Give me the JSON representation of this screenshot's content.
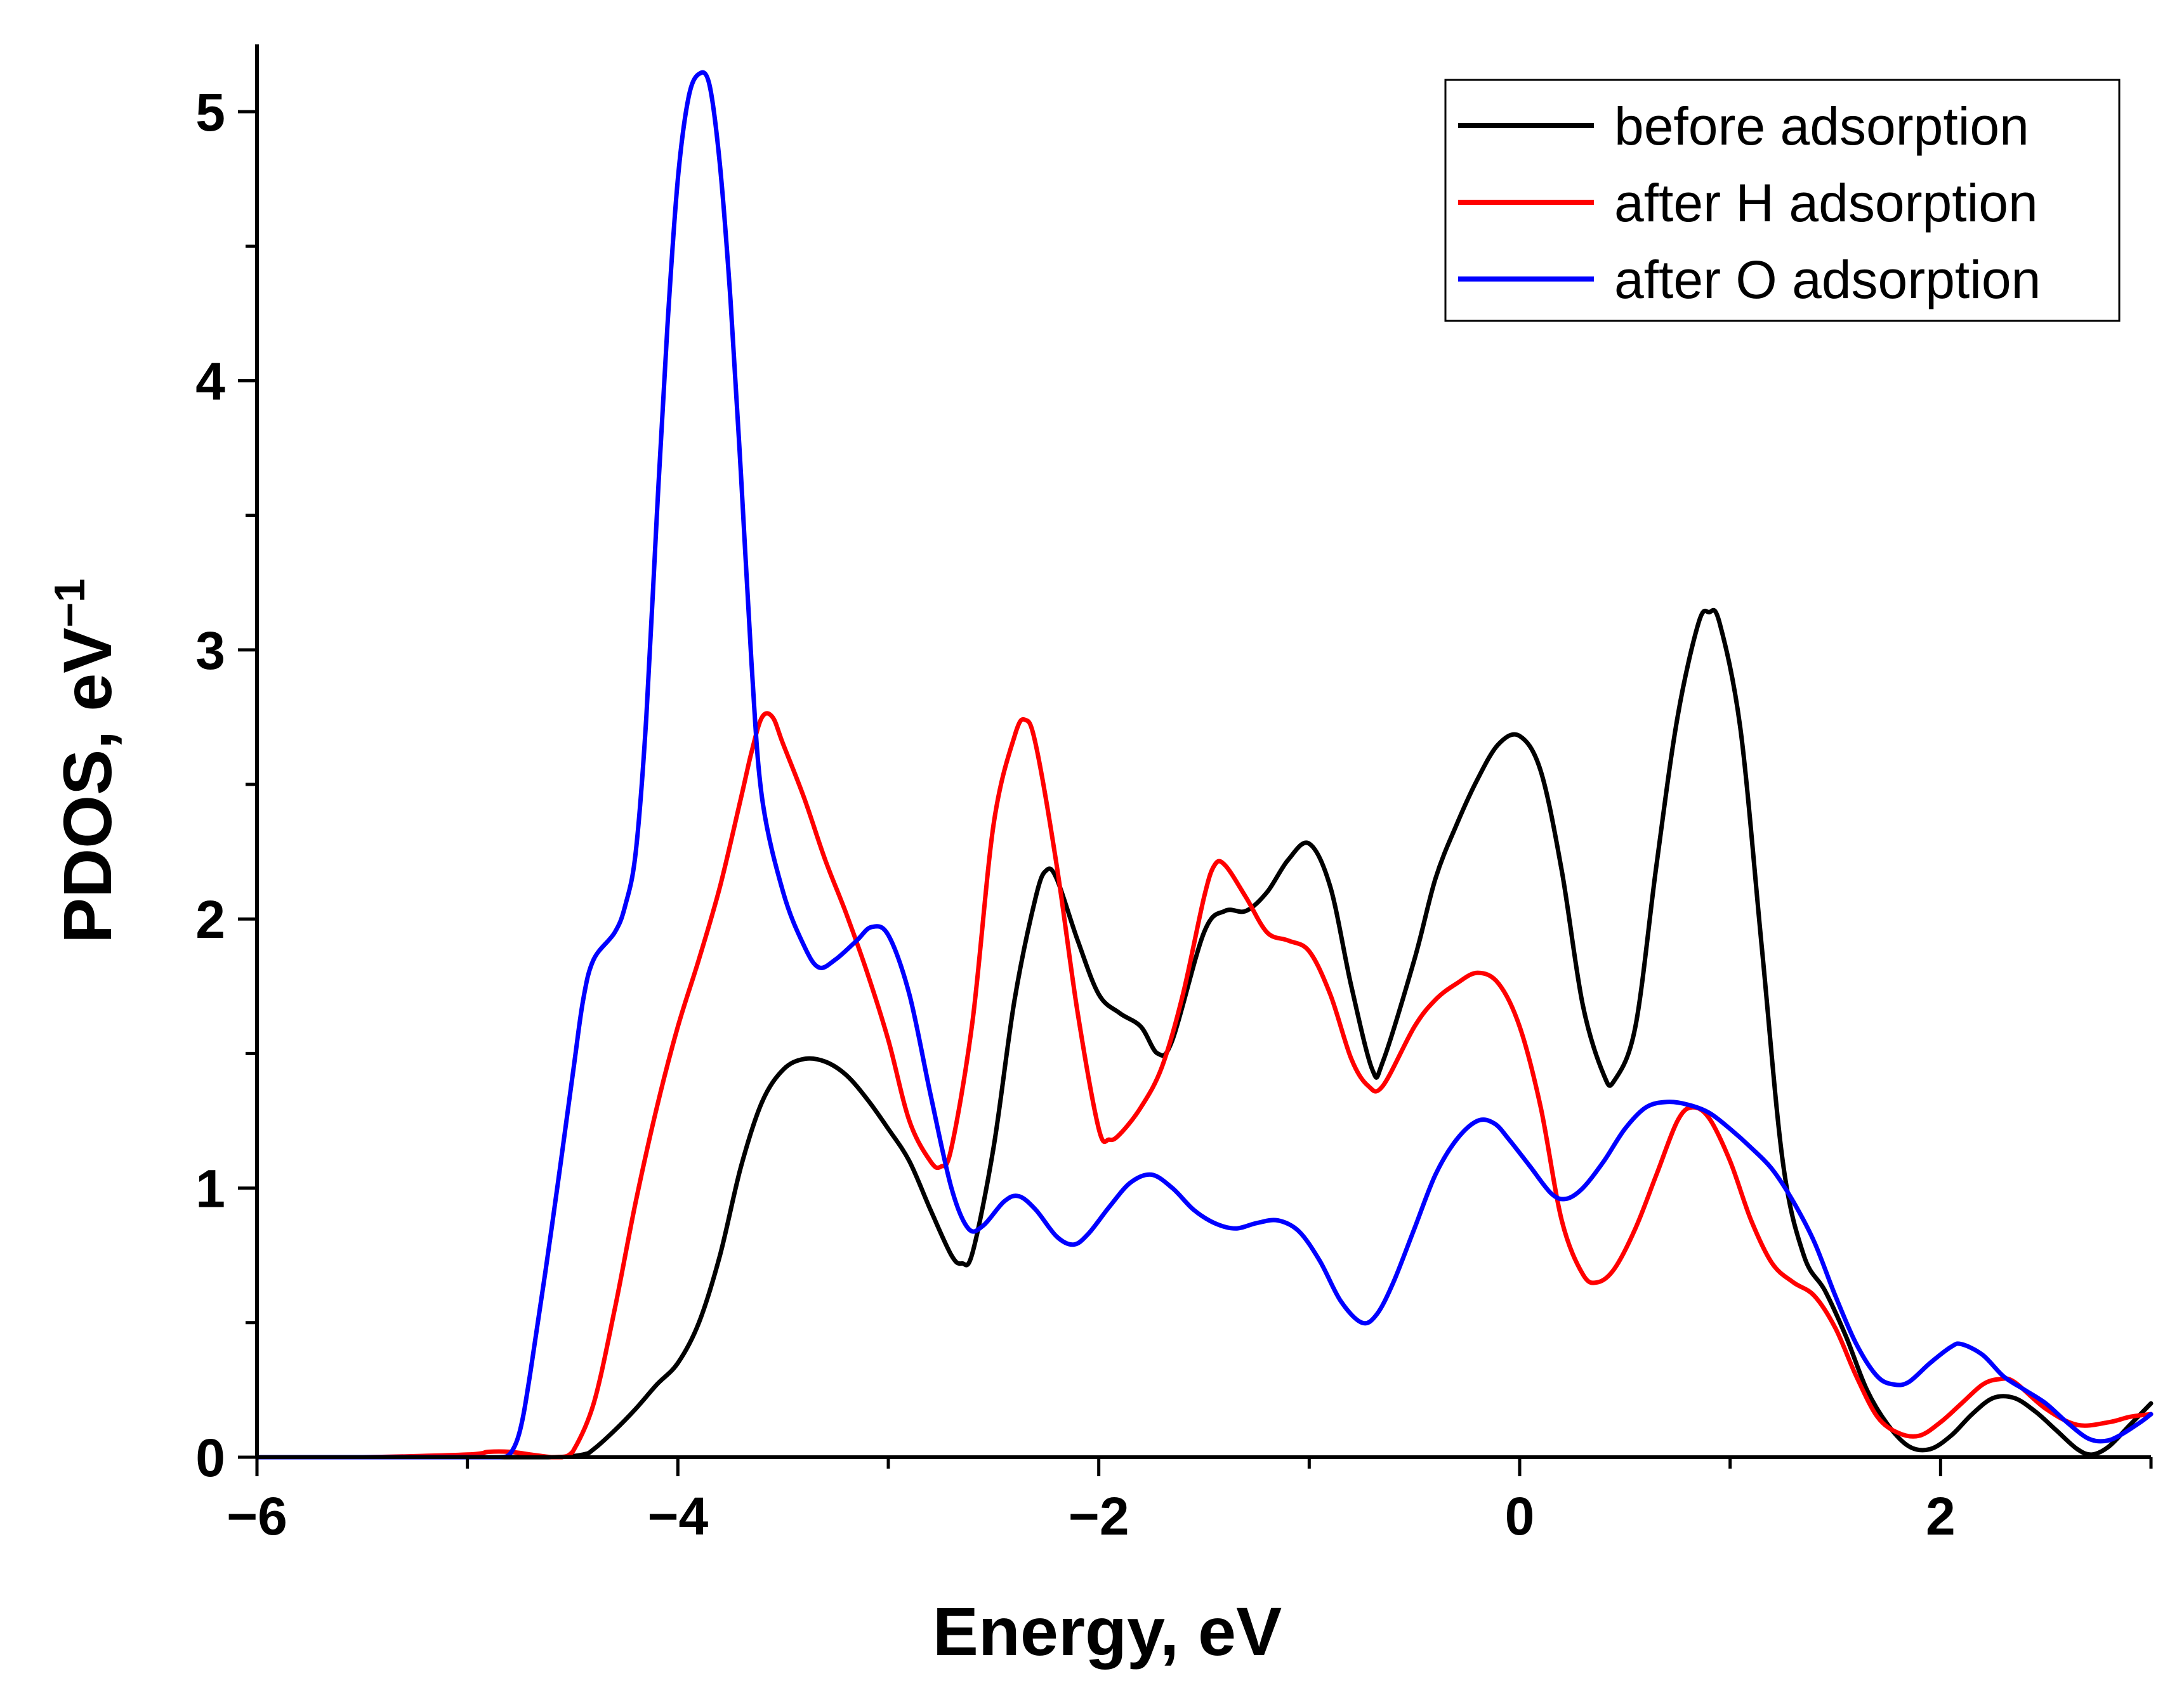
{
  "chart_data": {
    "type": "line",
    "title": "",
    "xlabel": "Energy, eV",
    "ylabel_main": "PDOS, eV",
    "ylabel_sup": "−1",
    "xlim": [
      -6,
      3
    ],
    "ylim": [
      0,
      5.25
    ],
    "xticks": [
      {
        "value": -6,
        "label": "−6"
      },
      {
        "value": -4,
        "label": "−4"
      },
      {
        "value": -2,
        "label": "−2"
      },
      {
        "value": 0,
        "label": "0"
      },
      {
        "value": 2,
        "label": "2"
      }
    ],
    "x_minor_step": 1,
    "yticks": [
      {
        "value": 0,
        "label": "0"
      },
      {
        "value": 1,
        "label": "1"
      },
      {
        "value": 2,
        "label": "2"
      },
      {
        "value": 3,
        "label": "3"
      },
      {
        "value": 4,
        "label": "4"
      },
      {
        "value": 5,
        "label": "5"
      }
    ],
    "y_minor_step": 0.5,
    "legend_position": "top-right",
    "series": [
      {
        "name": "before adsorption",
        "color": "#000000",
        "points": [
          [
            -6.0,
            0.0
          ],
          [
            -5.0,
            0.0
          ],
          [
            -4.6,
            0.0
          ],
          [
            -4.45,
            0.01
          ],
          [
            -4.4,
            0.03
          ],
          [
            -4.3,
            0.1
          ],
          [
            -4.2,
            0.18
          ],
          [
            -4.1,
            0.27
          ],
          [
            -4.0,
            0.35
          ],
          [
            -3.9,
            0.5
          ],
          [
            -3.8,
            0.75
          ],
          [
            -3.7,
            1.08
          ],
          [
            -3.6,
            1.32
          ],
          [
            -3.5,
            1.44
          ],
          [
            -3.4,
            1.48
          ],
          [
            -3.3,
            1.47
          ],
          [
            -3.2,
            1.42
          ],
          [
            -3.1,
            1.33
          ],
          [
            -3.0,
            1.22
          ],
          [
            -2.9,
            1.1
          ],
          [
            -2.8,
            0.92
          ],
          [
            -2.7,
            0.75
          ],
          [
            -2.65,
            0.72
          ],
          [
            -2.6,
            0.76
          ],
          [
            -2.5,
            1.15
          ],
          [
            -2.4,
            1.7
          ],
          [
            -2.3,
            2.08
          ],
          [
            -2.25,
            2.18
          ],
          [
            -2.2,
            2.15
          ],
          [
            -2.1,
            1.92
          ],
          [
            -2.0,
            1.72
          ],
          [
            -1.9,
            1.65
          ],
          [
            -1.8,
            1.6
          ],
          [
            -1.72,
            1.5
          ],
          [
            -1.65,
            1.55
          ],
          [
            -1.5,
            1.95
          ],
          [
            -1.4,
            2.03
          ],
          [
            -1.3,
            2.03
          ],
          [
            -1.2,
            2.1
          ],
          [
            -1.1,
            2.22
          ],
          [
            -1.0,
            2.28
          ],
          [
            -0.9,
            2.12
          ],
          [
            -0.8,
            1.75
          ],
          [
            -0.7,
            1.44
          ],
          [
            -0.65,
            1.47
          ],
          [
            -0.5,
            1.85
          ],
          [
            -0.4,
            2.15
          ],
          [
            -0.3,
            2.35
          ],
          [
            -0.2,
            2.52
          ],
          [
            -0.1,
            2.65
          ],
          [
            0.0,
            2.68
          ],
          [
            0.1,
            2.55
          ],
          [
            0.2,
            2.18
          ],
          [
            0.3,
            1.68
          ],
          [
            0.4,
            1.42
          ],
          [
            0.45,
            1.4
          ],
          [
            0.55,
            1.6
          ],
          [
            0.65,
            2.2
          ],
          [
            0.75,
            2.75
          ],
          [
            0.85,
            3.1
          ],
          [
            0.9,
            3.14
          ],
          [
            0.95,
            3.1
          ],
          [
            1.05,
            2.7
          ],
          [
            1.15,
            1.9
          ],
          [
            1.25,
            1.1
          ],
          [
            1.35,
            0.75
          ],
          [
            1.45,
            0.62
          ],
          [
            1.55,
            0.45
          ],
          [
            1.65,
            0.25
          ],
          [
            1.75,
            0.12
          ],
          [
            1.85,
            0.04
          ],
          [
            1.95,
            0.03
          ],
          [
            2.05,
            0.08
          ],
          [
            2.15,
            0.16
          ],
          [
            2.25,
            0.22
          ],
          [
            2.35,
            0.22
          ],
          [
            2.45,
            0.17
          ],
          [
            2.55,
            0.1
          ],
          [
            2.65,
            0.03
          ],
          [
            2.72,
            0.01
          ],
          [
            2.8,
            0.04
          ],
          [
            2.9,
            0.12
          ],
          [
            3.0,
            0.2
          ]
        ]
      },
      {
        "name": "after H adsorption",
        "color": "#ff0000",
        "points": [
          [
            -6.0,
            0.0
          ],
          [
            -5.5,
            0.0
          ],
          [
            -5.0,
            0.01
          ],
          [
            -4.9,
            0.02
          ],
          [
            -4.8,
            0.02
          ],
          [
            -4.7,
            0.01
          ],
          [
            -4.6,
            0.0
          ],
          [
            -4.55,
            0.0
          ],
          [
            -4.5,
            0.02
          ],
          [
            -4.4,
            0.2
          ],
          [
            -4.3,
            0.55
          ],
          [
            -4.2,
            0.95
          ],
          [
            -4.1,
            1.3
          ],
          [
            -4.0,
            1.6
          ],
          [
            -3.9,
            1.85
          ],
          [
            -3.8,
            2.12
          ],
          [
            -3.7,
            2.45
          ],
          [
            -3.65,
            2.62
          ],
          [
            -3.6,
            2.75
          ],
          [
            -3.55,
            2.75
          ],
          [
            -3.5,
            2.65
          ],
          [
            -3.4,
            2.45
          ],
          [
            -3.3,
            2.22
          ],
          [
            -3.2,
            2.02
          ],
          [
            -3.1,
            1.8
          ],
          [
            -3.0,
            1.55
          ],
          [
            -2.9,
            1.25
          ],
          [
            -2.8,
            1.1
          ],
          [
            -2.75,
            1.08
          ],
          [
            -2.7,
            1.15
          ],
          [
            -2.6,
            1.62
          ],
          [
            -2.5,
            2.35
          ],
          [
            -2.4,
            2.68
          ],
          [
            -2.35,
            2.74
          ],
          [
            -2.3,
            2.65
          ],
          [
            -2.2,
            2.2
          ],
          [
            -2.1,
            1.65
          ],
          [
            -2.0,
            1.22
          ],
          [
            -1.95,
            1.18
          ],
          [
            -1.9,
            1.2
          ],
          [
            -1.8,
            1.3
          ],
          [
            -1.7,
            1.45
          ],
          [
            -1.6,
            1.72
          ],
          [
            -1.5,
            2.08
          ],
          [
            -1.45,
            2.2
          ],
          [
            -1.4,
            2.2
          ],
          [
            -1.3,
            2.08
          ],
          [
            -1.2,
            1.95
          ],
          [
            -1.1,
            1.92
          ],
          [
            -1.0,
            1.88
          ],
          [
            -0.9,
            1.72
          ],
          [
            -0.8,
            1.48
          ],
          [
            -0.72,
            1.38
          ],
          [
            -0.65,
            1.38
          ],
          [
            -0.5,
            1.6
          ],
          [
            -0.4,
            1.7
          ],
          [
            -0.3,
            1.76
          ],
          [
            -0.2,
            1.8
          ],
          [
            -0.1,
            1.76
          ],
          [
            0.0,
            1.6
          ],
          [
            0.1,
            1.3
          ],
          [
            0.2,
            0.88
          ],
          [
            0.3,
            0.68
          ],
          [
            0.37,
            0.65
          ],
          [
            0.45,
            0.7
          ],
          [
            0.55,
            0.85
          ],
          [
            0.65,
            1.05
          ],
          [
            0.75,
            1.25
          ],
          [
            0.82,
            1.3
          ],
          [
            0.9,
            1.26
          ],
          [
            1.0,
            1.1
          ],
          [
            1.1,
            0.88
          ],
          [
            1.2,
            0.72
          ],
          [
            1.3,
            0.65
          ],
          [
            1.4,
            0.6
          ],
          [
            1.5,
            0.48
          ],
          [
            1.6,
            0.3
          ],
          [
            1.7,
            0.15
          ],
          [
            1.8,
            0.09
          ],
          [
            1.9,
            0.08
          ],
          [
            2.0,
            0.13
          ],
          [
            2.1,
            0.2
          ],
          [
            2.2,
            0.27
          ],
          [
            2.28,
            0.29
          ],
          [
            2.35,
            0.28
          ],
          [
            2.5,
            0.18
          ],
          [
            2.65,
            0.12
          ],
          [
            2.8,
            0.13
          ],
          [
            2.9,
            0.15
          ],
          [
            3.0,
            0.16
          ]
        ]
      },
      {
        "name": "after O adsorption",
        "color": "#0000ff",
        "points": [
          [
            -6.0,
            0.0
          ],
          [
            -5.0,
            0.0
          ],
          [
            -4.85,
            0.0
          ],
          [
            -4.8,
            0.01
          ],
          [
            -4.75,
            0.1
          ],
          [
            -4.7,
            0.32
          ],
          [
            -4.6,
            0.85
          ],
          [
            -4.5,
            1.42
          ],
          [
            -4.45,
            1.7
          ],
          [
            -4.4,
            1.85
          ],
          [
            -4.3,
            1.95
          ],
          [
            -4.25,
            2.05
          ],
          [
            -4.2,
            2.25
          ],
          [
            -4.15,
            2.75
          ],
          [
            -4.1,
            3.5
          ],
          [
            -4.05,
            4.2
          ],
          [
            -4.0,
            4.75
          ],
          [
            -3.95,
            5.05
          ],
          [
            -3.9,
            5.14
          ],
          [
            -3.85,
            5.1
          ],
          [
            -3.8,
            4.8
          ],
          [
            -3.75,
            4.3
          ],
          [
            -3.7,
            3.65
          ],
          [
            -3.65,
            2.95
          ],
          [
            -3.6,
            2.45
          ],
          [
            -3.5,
            2.1
          ],
          [
            -3.4,
            1.9
          ],
          [
            -3.33,
            1.82
          ],
          [
            -3.25,
            1.85
          ],
          [
            -3.15,
            1.92
          ],
          [
            -3.08,
            1.97
          ],
          [
            -3.0,
            1.94
          ],
          [
            -2.9,
            1.72
          ],
          [
            -2.8,
            1.35
          ],
          [
            -2.7,
            1.0
          ],
          [
            -2.62,
            0.85
          ],
          [
            -2.55,
            0.86
          ],
          [
            -2.45,
            0.95
          ],
          [
            -2.38,
            0.97
          ],
          [
            -2.3,
            0.92
          ],
          [
            -2.2,
            0.82
          ],
          [
            -2.12,
            0.79
          ],
          [
            -2.05,
            0.83
          ],
          [
            -1.95,
            0.93
          ],
          [
            -1.85,
            1.02
          ],
          [
            -1.75,
            1.05
          ],
          [
            -1.65,
            1.0
          ],
          [
            -1.55,
            0.92
          ],
          [
            -1.45,
            0.87
          ],
          [
            -1.35,
            0.85
          ],
          [
            -1.25,
            0.87
          ],
          [
            -1.15,
            0.88
          ],
          [
            -1.05,
            0.84
          ],
          [
            -0.95,
            0.73
          ],
          [
            -0.85,
            0.58
          ],
          [
            -0.75,
            0.5
          ],
          [
            -0.68,
            0.53
          ],
          [
            -0.6,
            0.65
          ],
          [
            -0.5,
            0.85
          ],
          [
            -0.4,
            1.05
          ],
          [
            -0.3,
            1.18
          ],
          [
            -0.2,
            1.25
          ],
          [
            -0.12,
            1.24
          ],
          [
            -0.05,
            1.18
          ],
          [
            0.05,
            1.08
          ],
          [
            0.15,
            0.98
          ],
          [
            0.22,
            0.96
          ],
          [
            0.3,
            1.0
          ],
          [
            0.4,
            1.1
          ],
          [
            0.5,
            1.22
          ],
          [
            0.6,
            1.3
          ],
          [
            0.7,
            1.32
          ],
          [
            0.8,
            1.31
          ],
          [
            0.9,
            1.28
          ],
          [
            1.0,
            1.22
          ],
          [
            1.1,
            1.15
          ],
          [
            1.2,
            1.07
          ],
          [
            1.3,
            0.95
          ],
          [
            1.4,
            0.8
          ],
          [
            1.5,
            0.6
          ],
          [
            1.6,
            0.42
          ],
          [
            1.7,
            0.3
          ],
          [
            1.78,
            0.27
          ],
          [
            1.85,
            0.28
          ],
          [
            1.95,
            0.35
          ],
          [
            2.05,
            0.41
          ],
          [
            2.1,
            0.42
          ],
          [
            2.2,
            0.38
          ],
          [
            2.3,
            0.3
          ],
          [
            2.4,
            0.25
          ],
          [
            2.5,
            0.2
          ],
          [
            2.6,
            0.13
          ],
          [
            2.7,
            0.07
          ],
          [
            2.78,
            0.06
          ],
          [
            2.85,
            0.08
          ],
          [
            2.95,
            0.13
          ],
          [
            3.0,
            0.16
          ]
        ]
      }
    ]
  }
}
